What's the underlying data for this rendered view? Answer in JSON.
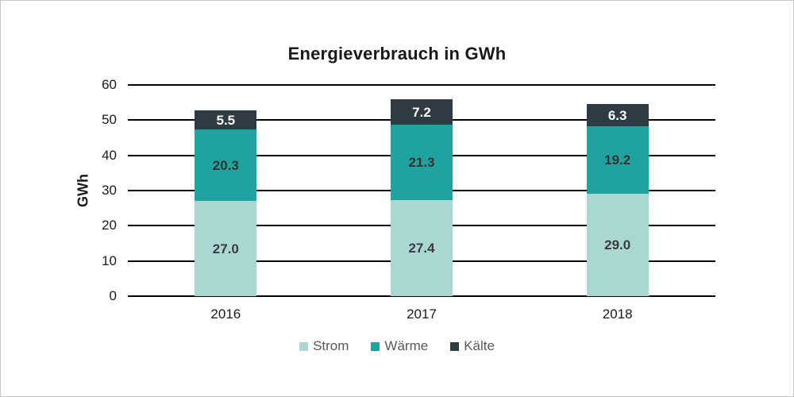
{
  "frame": {
    "border_color": "#c9c9c9",
    "background": "#ffffff"
  },
  "chart_data": {
    "type": "bar",
    "stacked": true,
    "title": "Energieverbrauch in GWh",
    "ylabel": "GWh",
    "xlabel": "",
    "categories": [
      "2016",
      "2017",
      "2018"
    ],
    "series": [
      {
        "name": "Strom",
        "color": "#a9d8d2",
        "label_color": "#3d3b3b",
        "values": [
          27.0,
          27.4,
          29.0
        ]
      },
      {
        "name": "Wärme",
        "color": "#1fa3a0",
        "label_color": "#333333",
        "values": [
          20.3,
          21.3,
          19.2
        ]
      },
      {
        "name": "Kälte",
        "color": "#2e3b43",
        "label_color": "#ffffff",
        "values": [
          5.5,
          7.2,
          6.3
        ]
      }
    ],
    "ylim": [
      0,
      60
    ],
    "yticks": [
      0,
      10,
      20,
      30,
      40,
      50,
      60
    ],
    "grid": true,
    "gridline_color": "#000000",
    "legend_position": "bottom",
    "legend_text_color": "#595959",
    "value_decimals": 1
  }
}
